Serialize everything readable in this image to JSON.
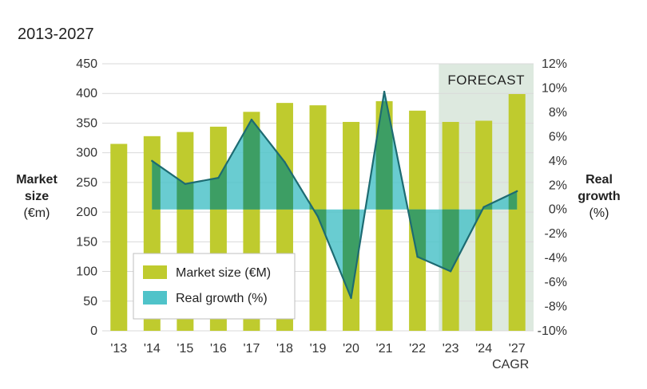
{
  "title": "2013-2027",
  "chart_data": {
    "type": "bar+line",
    "categories": [
      "'13",
      "'14",
      "'15",
      "'16",
      "'17",
      "'18",
      "'19",
      "'20",
      "'21",
      "'22",
      "'23",
      "'24",
      "'27"
    ],
    "cagr_label": "CAGR",
    "series": [
      {
        "name": "Market size (€M)",
        "type": "bar",
        "axis": "left",
        "color": "#bfcb2e",
        "values": [
          315,
          328,
          335,
          344,
          369,
          384,
          380,
          352,
          387,
          371,
          352,
          354,
          399
        ]
      },
      {
        "name": "Real growth (%)",
        "type": "area-line",
        "axis": "right",
        "color": "#4fc3c9",
        "line_color": "#1d6b72",
        "values": [
          null,
          4.0,
          2.1,
          2.6,
          7.4,
          3.9,
          -0.6,
          -7.3,
          9.7,
          -3.9,
          -5.1,
          0.2,
          1.5
        ]
      }
    ],
    "ylabel_left": [
      "Market",
      "size",
      "(€m)"
    ],
    "ylabel_right": [
      "Real",
      "growth",
      "(%)"
    ],
    "ylim_left": [
      0,
      450
    ],
    "yticks_left": [
      0,
      50,
      100,
      150,
      200,
      250,
      300,
      350,
      400,
      450
    ],
    "ylim_right": [
      -10,
      12
    ],
    "yticks_right": [
      "-10%",
      "-8%",
      "-6%",
      "-4%",
      "-2%",
      "0%",
      "2%",
      "4%",
      "6%",
      "8%",
      "10%",
      "12%"
    ],
    "grid": true,
    "forecast": {
      "label": "FORECAST",
      "start_category": "'23",
      "color": "#dde9df"
    },
    "overlap_color": "#3d9e64",
    "legend_position": "bottom-left"
  }
}
